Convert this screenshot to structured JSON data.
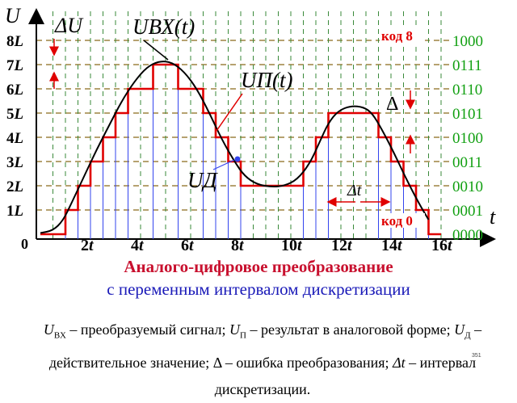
{
  "axes": {
    "y_axis_label": "U",
    "x_axis_label": "t",
    "origin_label": "0"
  },
  "level_labels": [
    "1L",
    "2L",
    "3L",
    "4L",
    "5L",
    "6L",
    "7L",
    "8L"
  ],
  "code_labels": [
    "0000",
    "0001",
    "0010",
    "0011",
    "0100",
    "0101",
    "0110",
    "0111",
    "1000"
  ],
  "time_labels": [
    "2t",
    "4t",
    "6t",
    "8t",
    "10t",
    "12t",
    "14t",
    "16t"
  ],
  "annotations": {
    "delta_u": "ΔU",
    "u_in": "UВХ(t)",
    "u_p": "UП(t)",
    "u_d": "UД",
    "delta": "Δ",
    "delta_t": "Δt",
    "code_top": "код 8",
    "code_bottom": "код 0"
  },
  "caption": {
    "title": "Аналого-цифровое преобразование",
    "subtitle": "с переменным интервалом дискретизации"
  },
  "legend": {
    "u_in_symbol": "U",
    "u_in_sub": "ВХ",
    "u_in_text": "– преобразуемый сигнал;",
    "u_p_symbol": "U",
    "u_p_sub": "П",
    "u_p_text": "– результат в аналоговой форме;",
    "u_d_symbol": "U",
    "u_d_sub": "Д",
    "u_d_text": "– действительное значение; Δ – ошибка преобразования;",
    "dt_symbol": "Δt",
    "dt_text": "– интервал дискретизации."
  },
  "page_number": "351",
  "colors": {
    "signal": "#000000",
    "quantized": "#e00000",
    "samples": "#3344ee",
    "grid": "#8b6a1a",
    "codes": "#12a012",
    "arrows": "#e00000"
  }
}
